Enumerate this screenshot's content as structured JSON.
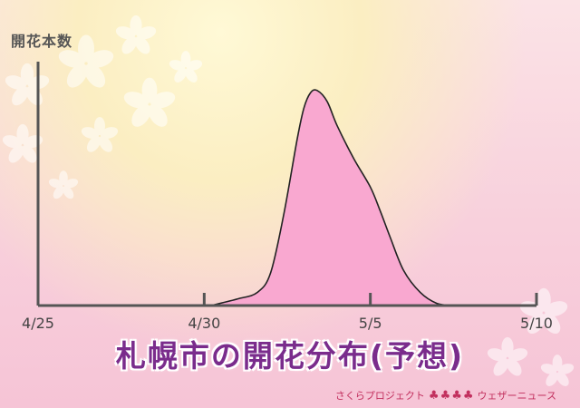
{
  "ylabel": "開花本数",
  "title": "札幌市の開花分布(予想)",
  "credit": {
    "left": "さくらプロジェクト",
    "right": "ウェザーニュース",
    "logo_icon": "cherry-tree-icon"
  },
  "colors": {
    "fill": "#f9a8d0",
    "stroke": "#222222",
    "axis": "#555555",
    "title": "#7a2c8c",
    "credit": "#c2305e"
  },
  "chart_data": {
    "type": "area",
    "title": "札幌市の開花分布(予想)",
    "ylabel": "開花本数",
    "xlabel": "",
    "x_ticks": [
      "4/25",
      "4/30",
      "5/5",
      "5/10"
    ],
    "x_tick_values": [
      0,
      5,
      10,
      15
    ],
    "xlim": [
      0,
      15
    ],
    "ylim": [
      0,
      100
    ],
    "grid": false,
    "legend": "none",
    "y_ticks_shown": false,
    "series": [
      {
        "x": [
          5.2,
          6.0,
          6.6,
          7.0,
          7.4,
          7.8,
          8.0,
          8.2,
          8.4,
          8.7,
          9.0,
          9.5,
          10.0,
          10.3,
          10.6,
          11.0,
          11.5,
          12.0,
          12.5
        ],
        "y": [
          0,
          3,
          6,
          15,
          42,
          76,
          90,
          97,
          98,
          93,
          82,
          67,
          54,
          43,
          31,
          16,
          6,
          1,
          0
        ]
      }
    ]
  }
}
